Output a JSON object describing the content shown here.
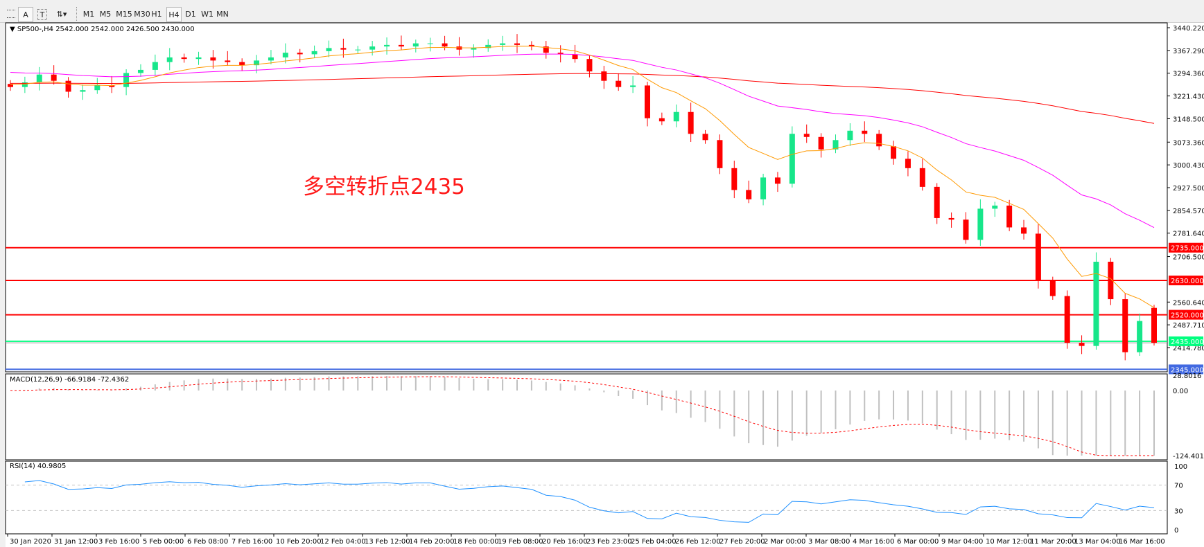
{
  "toolbar": {
    "tools": [
      {
        "name": "grid-tool",
        "label": ""
      },
      {
        "name": "text-a",
        "label": "A"
      },
      {
        "name": "text-label",
        "label": "T"
      },
      {
        "name": "arrows",
        "label": "⇅▾"
      }
    ],
    "timeframes": [
      "M1",
      "M5",
      "M15",
      "M30",
      "H1",
      "H4",
      "D1",
      "W1",
      "MN"
    ],
    "active_timeframe": "H4"
  },
  "chart_header": "SP500-,H4  2542.000 2542.000 2426.500 2430.000",
  "annotation": "多空转折点2435",
  "colors": {
    "bull": "#17e68a",
    "bear": "#ff0000",
    "ma_fast": "#ff9900",
    "ma_mid": "#ff00ff",
    "ma_slow": "#ff0000",
    "rsi": "#1e90ff",
    "macd_hist": "#c0c0c0",
    "macd_signal": "#ff0000"
  },
  "chart_data": [
    {
      "type": "candlestick",
      "symbol": "SP500-",
      "timeframe": "H4",
      "last_bar": {
        "open": 2542.0,
        "high": 2542.0,
        "low": 2426.5,
        "close": 2430.0
      },
      "closes": [
        3250,
        3265,
        3290,
        3270,
        3235,
        3240,
        3255,
        3250,
        3295,
        3305,
        3330,
        3345,
        3340,
        3345,
        3335,
        3330,
        3320,
        3335,
        3345,
        3360,
        3355,
        3365,
        3375,
        3370,
        3370,
        3380,
        3385,
        3380,
        3390,
        3390,
        3380,
        3370,
        3375,
        3385,
        3390,
        3385,
        3380,
        3360,
        3355,
        3340,
        3300,
        3270,
        3250,
        3255,
        3150,
        3140,
        3170,
        3100,
        3080,
        2990,
        2920,
        2890,
        2960,
        2940,
        3100,
        3090,
        3050,
        3080,
        3110,
        3100,
        3060,
        3020,
        2990,
        2930,
        2830,
        2825,
        2760,
        2860,
        2870,
        2800,
        2780,
        2630,
        2580,
        2430,
        2420,
        2690,
        2570,
        2400,
        2500,
        2430
      ],
      "y_ticks": [
        "3440.220",
        "3367.290",
        "3294.360",
        "3221.430",
        "3148.500",
        "3073.360",
        "3000.430",
        "2927.500",
        "2854.570",
        "2781.640",
        "2706.500",
        "2560.640",
        "2487.710",
        "2414.780"
      ],
      "ylim": [
        2335,
        3455
      ],
      "x_ticks": [
        "30 Jan 2020",
        "31 Jan 12:00",
        "3 Feb 16:00",
        "5 Feb 00:00",
        "6 Feb 08:00",
        "7 Feb 16:00",
        "10 Feb 20:00",
        "12 Feb 04:00",
        "13 Feb 12:00",
        "14 Feb 20:00",
        "18 Feb 00:00",
        "19 Feb 08:00",
        "20 Feb 16:00",
        "23 Feb 23:00",
        "25 Feb 04:00",
        "26 Feb 12:00",
        "27 Feb 20:00",
        "2 Mar 00:00",
        "3 Mar 08:00",
        "4 Mar 16:00",
        "6 Mar 00:00",
        "9 Mar 04:00",
        "10 Mar 12:00",
        "11 Mar 20:00",
        "13 Mar 04:00",
        "16 Mar 16:00"
      ],
      "levels": [
        {
          "value": 2735,
          "label": "2735.000",
          "color": "#ff0000"
        },
        {
          "value": 2630,
          "label": "2630.000",
          "color": "#ff0000"
        },
        {
          "value": 2520,
          "label": "2520.000",
          "color": "#ff0000"
        },
        {
          "value": 2435,
          "label": "2435.000",
          "color": "#00ff7f"
        },
        {
          "value": 2345,
          "label": "2345.000",
          "color": "#4169e1"
        }
      ],
      "moving_averages": [
        "ma_fast",
        "ma_mid",
        "ma_slow"
      ]
    },
    {
      "type": "bar",
      "indicator": "MACD",
      "label": "MACD(12,26,9) -66.9184 -72.4362",
      "y_ticks": [
        "28.8016",
        "0.00",
        "-124.4011"
      ],
      "ylim": [
        -124.4011,
        28.8016
      ]
    },
    {
      "type": "line",
      "indicator": "RSI",
      "label": "RSI(14) 40.9805",
      "y_ticks": [
        "100",
        "70",
        "30",
        "0"
      ],
      "ylim": [
        0,
        100
      ],
      "levels": [
        70,
        30
      ]
    }
  ]
}
